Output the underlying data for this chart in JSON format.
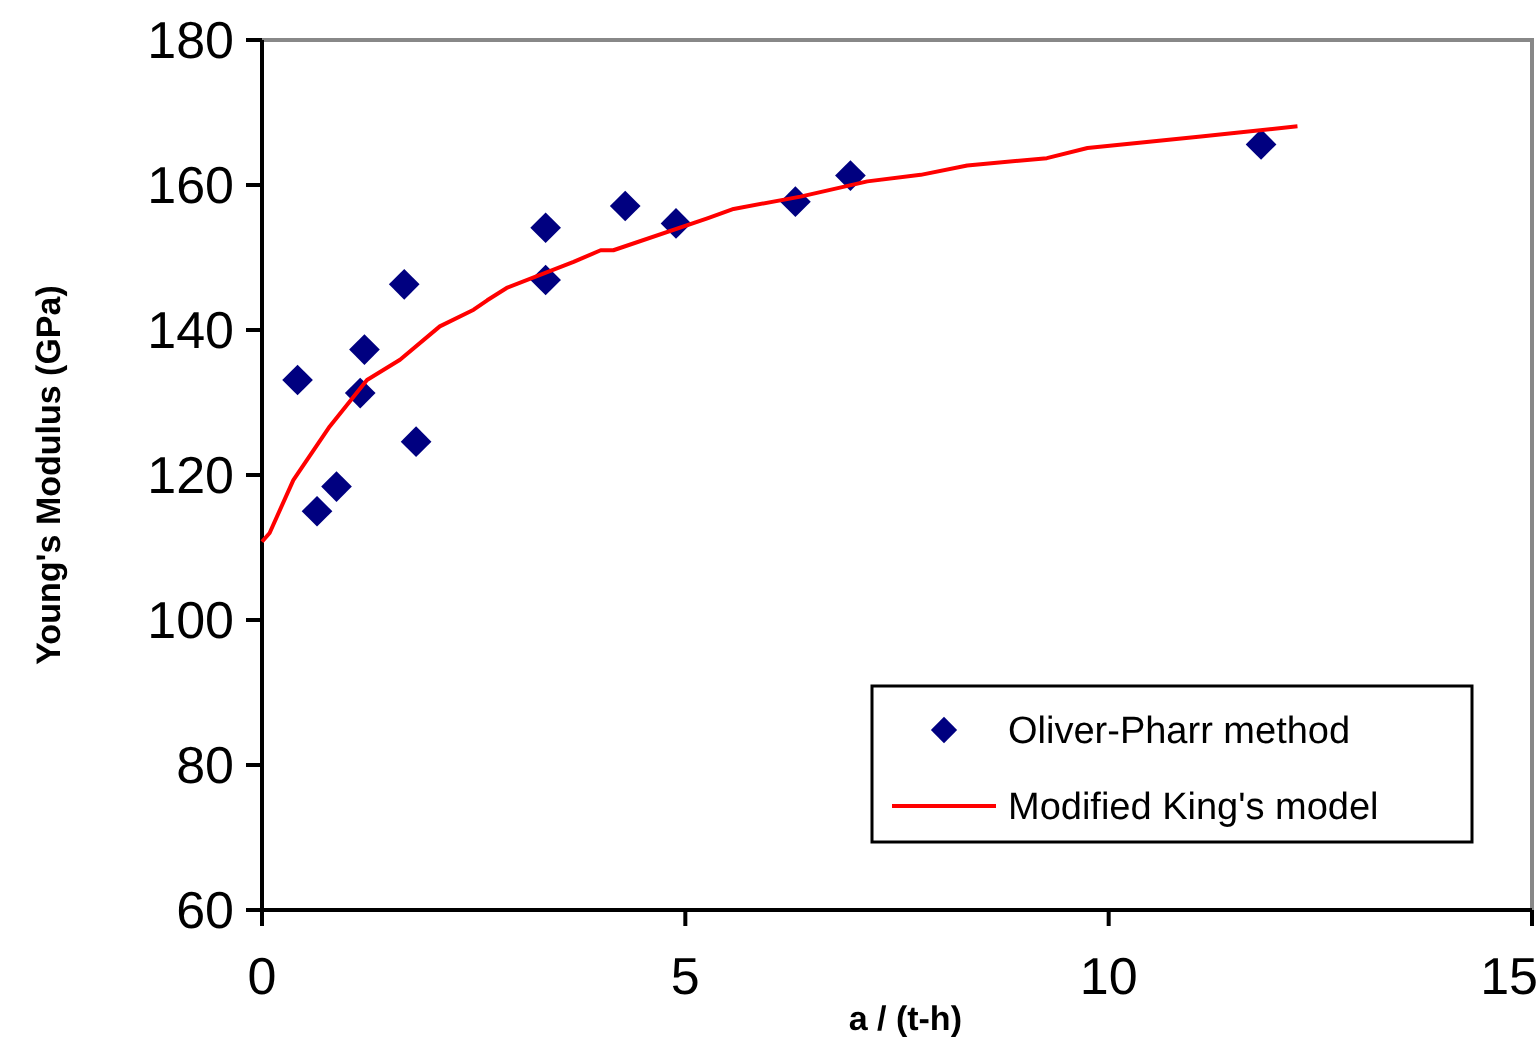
{
  "chart_data": {
    "type": "scatter",
    "xlabel": "a / (t-h)",
    "ylabel": "Young's Modulus (GPa)",
    "xlim": [
      0,
      15
    ],
    "xticks": [
      0,
      5,
      10,
      15
    ],
    "ylim": [
      60,
      180
    ],
    "yticks": [
      60,
      80,
      100,
      120,
      140,
      160,
      180
    ],
    "grid": false,
    "legend": "bottom right",
    "series": [
      {
        "name": "Oliver-Pharr method",
        "marker": "diamond",
        "color": "#000080",
        "x": [
          0.42,
          0.65,
          0.88,
          1.16,
          1.21,
          1.68,
          1.82,
          3.35,
          3.35,
          4.29,
          4.89,
          6.3,
          6.95,
          11.8
        ],
        "values": [
          133.1,
          115,
          118.4,
          131.3,
          137.3,
          146.3,
          124.6,
          154.1,
          146.9,
          157.1,
          154.7,
          157.7,
          161.3,
          165.6
        ]
      },
      {
        "name": "Modified King's model",
        "type": "line",
        "marker": "none",
        "line_style": "solid",
        "color": "#ff0000",
        "x": [
          0,
          0.09,
          0.37,
          0.8,
          1.24,
          1.63,
          2.1,
          2.5,
          2.66,
          2.89,
          3.68,
          4,
          4.15,
          5.26,
          5.57,
          6.36,
          7.15,
          7.78,
          8.33,
          9.27,
          9.75,
          11.09,
          12.23
        ],
        "values": [
          110.8,
          112,
          119.3,
          126.7,
          133.1,
          135.9,
          140.5,
          142.8,
          144.1,
          145.8,
          149.4,
          151,
          151,
          155.4,
          156.7,
          158.4,
          160.5,
          161.4,
          162.7,
          163.7,
          165.1,
          166.7,
          168.1
        ]
      }
    ]
  }
}
